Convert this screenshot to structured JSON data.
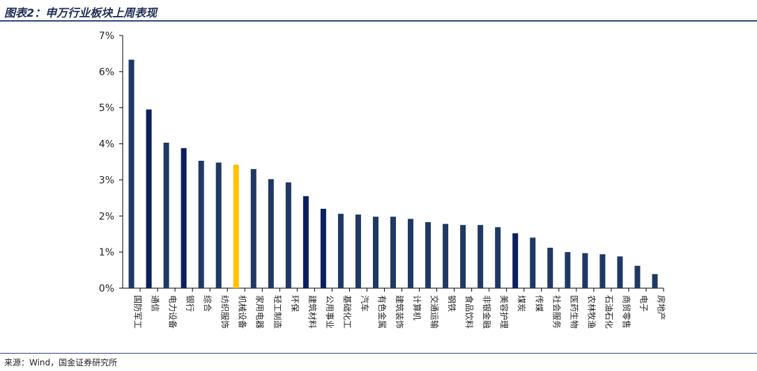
{
  "header": {
    "title": "图表2：申万行业板块上周表现"
  },
  "footer": {
    "source": "来源：Wind，国金证券研究所"
  },
  "colors": {
    "bar_default": "#1f3864",
    "bar_dark": "#0b1f5c",
    "bar_highlight": "#ffc000",
    "axis": "#000000",
    "rule": "#2b4a7a"
  },
  "chart_data": {
    "type": "bar",
    "title": "",
    "xlabel": "",
    "ylabel": "",
    "ylim": [
      0,
      7
    ],
    "yticks": [
      "0%",
      "1%",
      "2%",
      "3%",
      "4%",
      "5%",
      "6%",
      "7%"
    ],
    "grid": false,
    "categories": [
      "国防军工",
      "通信",
      "电力设备",
      "银行",
      "综合",
      "纺织服饰",
      "机械设备",
      "家用电器",
      "轻工制造",
      "环保",
      "建筑材料",
      "公用事业",
      "基础化工",
      "汽车",
      "有色金属",
      "建筑装饰",
      "计算机",
      "交通运输",
      "钢铁",
      "食品饮料",
      "非银金融",
      "美容护理",
      "煤炭",
      "传媒",
      "社会服务",
      "医药生物",
      "农林牧渔",
      "石油石化",
      "商贸零售",
      "电子",
      "房地产"
    ],
    "values": [
      6.33,
      4.95,
      4.03,
      3.88,
      3.53,
      3.48,
      3.42,
      3.3,
      3.02,
      2.93,
      2.55,
      2.2,
      2.06,
      2.04,
      1.98,
      1.98,
      1.92,
      1.83,
      1.78,
      1.75,
      1.75,
      1.69,
      1.52,
      1.4,
      1.12,
      1.0,
      0.97,
      0.94,
      0.88,
      0.62,
      0.39
    ],
    "highlight": [
      "机械设备"
    ],
    "dark": [
      "通信",
      "银行",
      "建筑材料",
      "公用事业",
      "煤炭"
    ]
  }
}
